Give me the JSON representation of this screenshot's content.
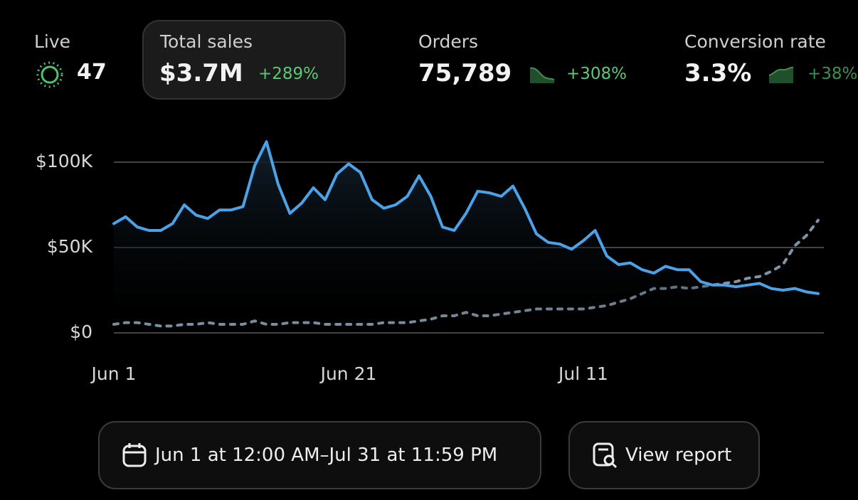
{
  "metrics": [
    {
      "label": "Live",
      "value": "47"
    },
    {
      "label": "Total sales",
      "value": "$3.7M",
      "change": "+289%"
    },
    {
      "label": "Orders",
      "value": "75,789",
      "change": "+308%"
    },
    {
      "label": "Conversion rate",
      "value": "3.3%",
      "change": "+38%"
    }
  ],
  "chart_data": {
    "type": "line",
    "categories": [
      "Jun 1",
      null,
      null,
      null,
      null,
      null,
      null,
      null,
      null,
      null,
      null,
      null,
      null,
      null,
      null,
      null,
      null,
      null,
      null,
      null,
      "Jun 21",
      null,
      null,
      null,
      null,
      null,
      null,
      null,
      null,
      null,
      null,
      null,
      null,
      null,
      null,
      null,
      null,
      null,
      null,
      null,
      "Jul 11",
      null,
      null,
      null,
      null,
      null,
      null,
      null,
      null,
      null,
      null,
      null,
      null,
      null,
      null,
      null,
      null,
      null,
      null,
      null,
      null
    ],
    "series": [
      {
        "color": "#4aa3e8",
        "dashed": false,
        "values": [
          64,
          68,
          62,
          60,
          60,
          64,
          75,
          69,
          67,
          72,
          72,
          74,
          98,
          112,
          87,
          70,
          76,
          85,
          78,
          93,
          99,
          94,
          78,
          73,
          75,
          80,
          92,
          80,
          62,
          60,
          70,
          83,
          82,
          80,
          86,
          73,
          58,
          53,
          52,
          49,
          54,
          60,
          45,
          40,
          41,
          37,
          35,
          39,
          37,
          37,
          30,
          28,
          28,
          27,
          28,
          29,
          26,
          25,
          26,
          24,
          23
        ]
      },
      {
        "color": "#7d95a6",
        "dashed": true,
        "values": [
          5,
          6,
          6,
          5,
          4,
          4,
          5,
          5,
          6,
          5,
          5,
          5,
          7,
          5,
          5,
          6,
          6,
          6,
          5,
          5,
          5,
          5,
          5,
          6,
          6,
          6,
          7,
          8,
          10,
          10,
          12,
          10,
          10,
          11,
          12,
          13,
          14,
          14,
          14,
          14,
          14,
          15,
          16,
          18,
          20,
          23,
          26,
          26,
          27,
          26,
          27,
          28,
          29,
          30,
          32,
          33,
          36,
          40,
          51,
          57,
          66
        ]
      }
    ],
    "ylim": [
      0,
      115
    ],
    "yticks": [
      {
        "value": 0,
        "label": "$0"
      },
      {
        "value": 50,
        "label": "$50K"
      },
      {
        "value": 100,
        "label": "$100K"
      }
    ],
    "grid": true
  },
  "buttons": [
    "Jun 1 at 12:00 AM–Jul 31 at 11:59 PM",
    "View report"
  ]
}
